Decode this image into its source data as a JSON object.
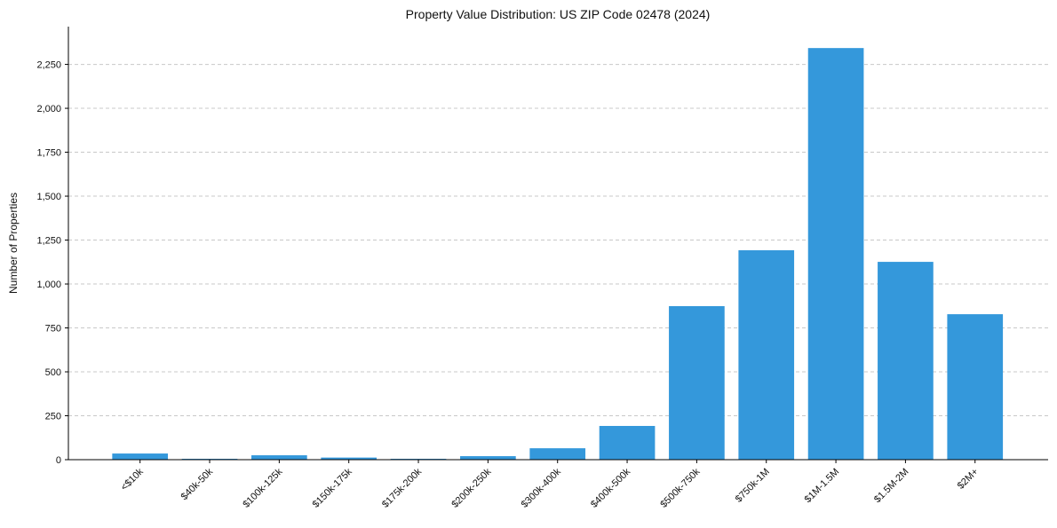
{
  "chart_data": {
    "type": "bar",
    "title": "Property Value Distribution: US ZIP Code 02478 (2024)",
    "xlabel": "",
    "ylabel": "Number of Properties",
    "categories": [
      "<$10k",
      "$40k-50k",
      "$100k-125k",
      "$150k-175k",
      "$175k-200k",
      "$200k-250k",
      "$300k-400k",
      "$400k-500k",
      "$500k-750k",
      "$750k-1M",
      "$1M-1.5M",
      "$1.5M-2M",
      "$2M+"
    ],
    "values": [
      35,
      5,
      25,
      12,
      5,
      20,
      65,
      192,
      874,
      1192,
      2343,
      1126,
      828
    ],
    "ylim": [
      0,
      2465
    ],
    "yticks": [
      0,
      250,
      500,
      750,
      1000,
      1250,
      1500,
      1750,
      2000,
      2250
    ],
    "ytick_labels": [
      "0",
      "250",
      "500",
      "750",
      "1,000",
      "1,250",
      "1,500",
      "1,750",
      "2,000",
      "2,250"
    ],
    "grid": "y-dashed",
    "bar_color": "#3498db"
  }
}
